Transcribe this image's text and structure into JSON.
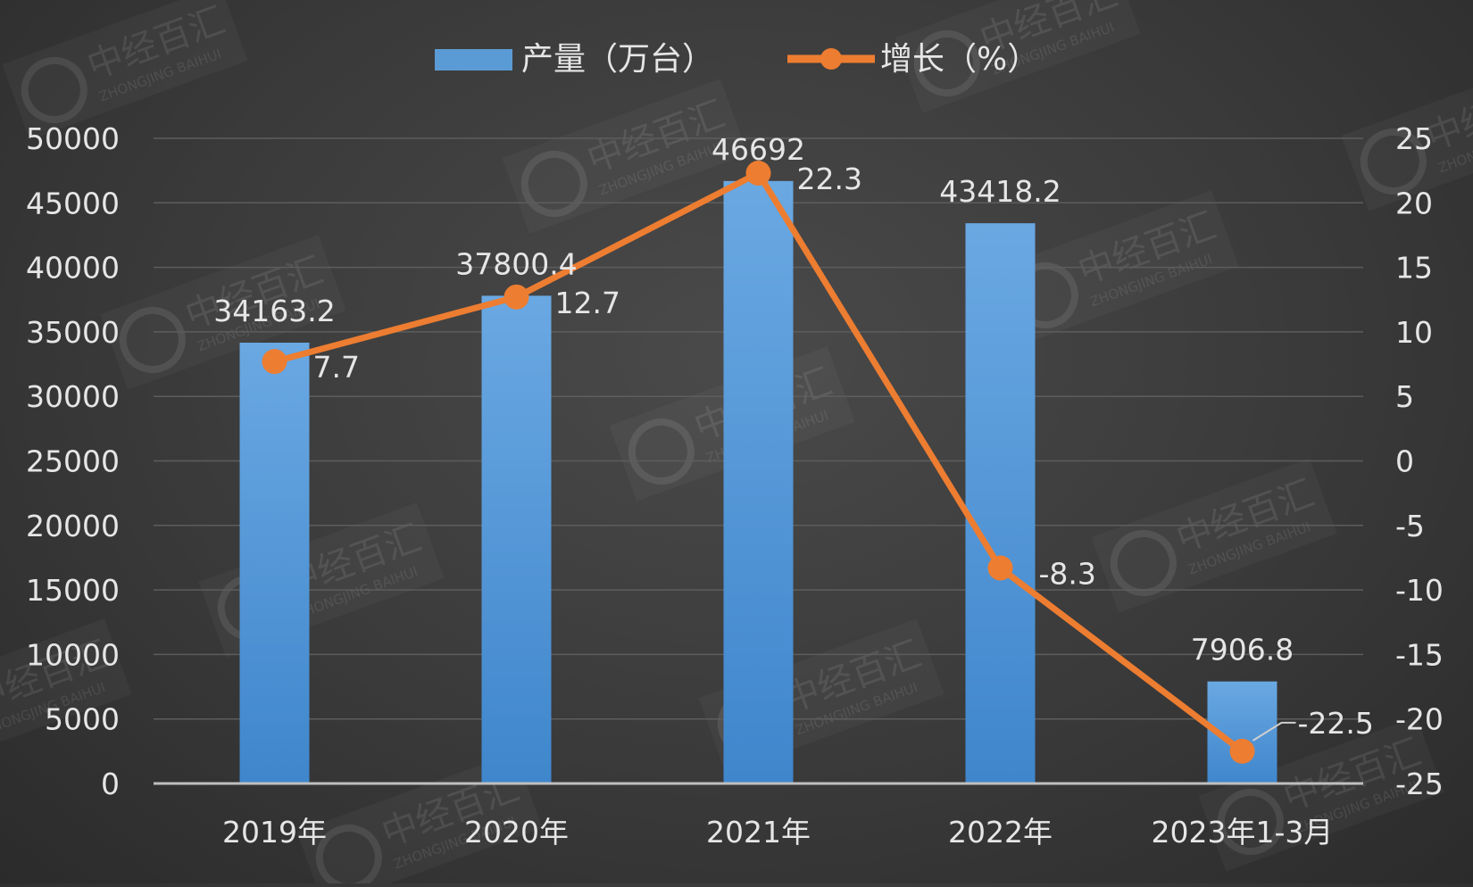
{
  "chart_data": {
    "type": "bar",
    "categories": [
      "2019年",
      "2020年",
      "2021年",
      "2022年",
      "2023年1-3月"
    ],
    "series": [
      {
        "name": "产量（万台）",
        "type": "bar",
        "axis": "left",
        "values": [
          34163.2,
          37800.4,
          46692,
          43418.2,
          7906.8
        ],
        "labels": [
          "34163.2",
          "37800.4",
          "46692",
          "43418.2",
          "7906.8"
        ],
        "color": "#5b9bd5"
      },
      {
        "name": "增长（%）",
        "type": "line",
        "axis": "right",
        "values": [
          7.7,
          12.7,
          22.3,
          -8.3,
          -22.5
        ],
        "labels": [
          "7.7",
          "12.7",
          "22.3",
          "-8.3",
          "-22.5"
        ],
        "color": "#ed7d31"
      }
    ],
    "ylim": [
      0,
      50000
    ],
    "y2lim": [
      -25,
      25
    ],
    "yticks": [
      "0",
      "5000",
      "10000",
      "15000",
      "20000",
      "25000",
      "30000",
      "35000",
      "40000",
      "45000",
      "50000"
    ],
    "y2ticks": [
      "-25",
      "-20",
      "-15",
      "-10",
      "-5",
      "0",
      "5",
      "10",
      "15",
      "20",
      "25"
    ],
    "grid": true,
    "legend_position": "top"
  },
  "watermark": {
    "text": "中经百汇",
    "subtext": "ZHONGJING BAIHUI"
  }
}
